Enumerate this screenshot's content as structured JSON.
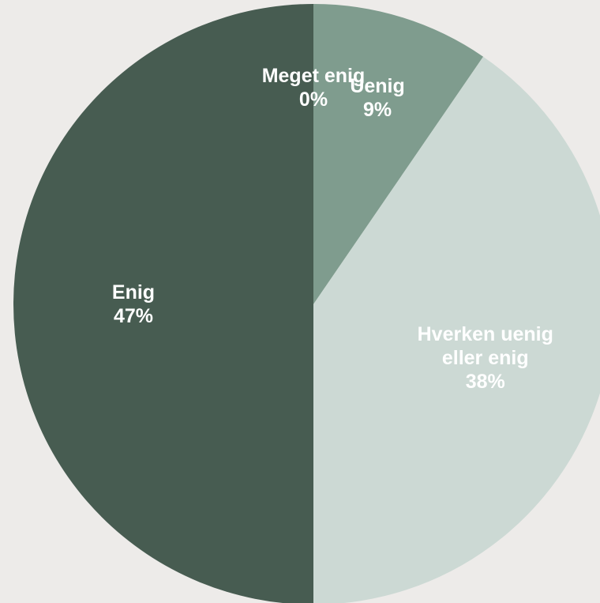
{
  "chart_data": {
    "type": "pie",
    "categories": [
      "Meget enig",
      "Uenig",
      "Hverken uenig eller enig",
      "Enig"
    ],
    "values": [
      0,
      9,
      38,
      47
    ],
    "value_labels": [
      "0%",
      "9%",
      "38%",
      "47%"
    ],
    "colors": [
      "#3d3a35",
      "#7f9c8e",
      "#ccd9d4",
      "#475c51"
    ]
  }
}
